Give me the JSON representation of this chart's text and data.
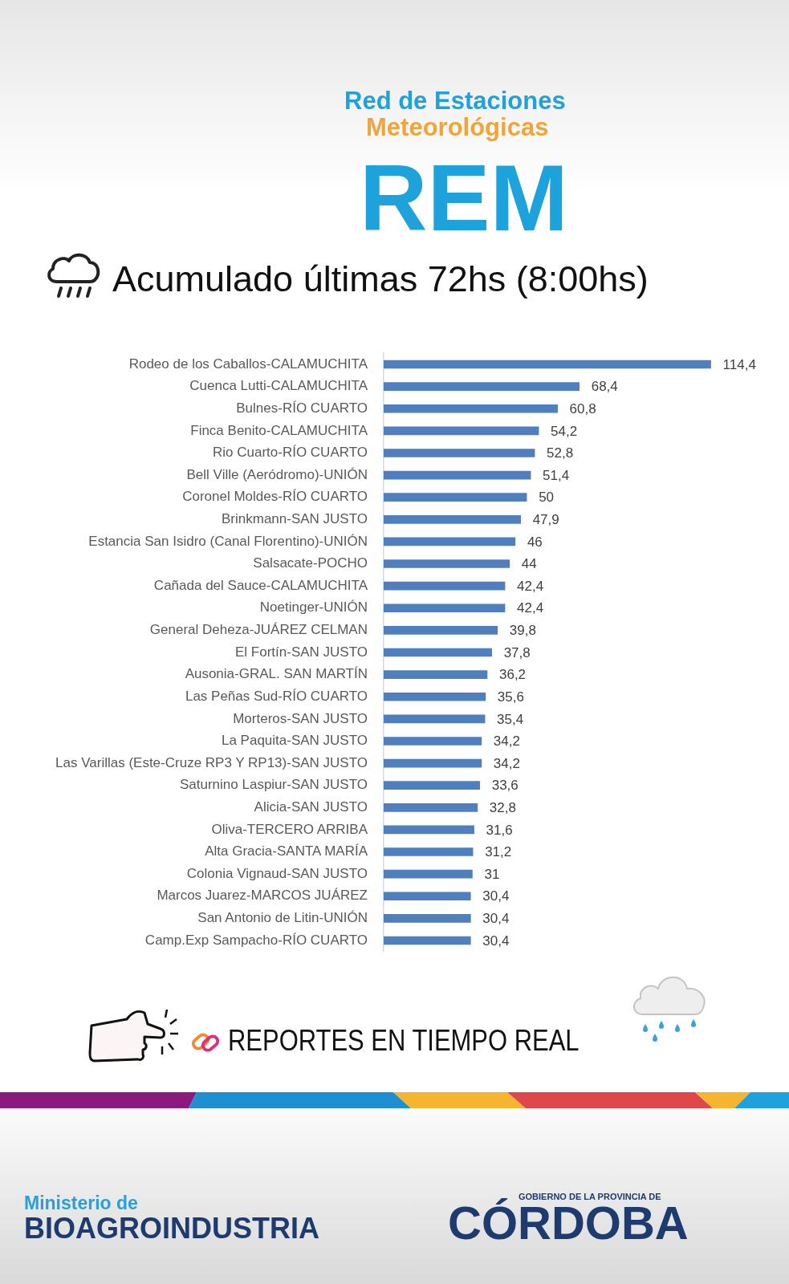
{
  "chart_data": {
    "type": "bar",
    "orientation": "horizontal",
    "title": "Acumulado últimas 72hs (8:00hs)",
    "categories": [
      "Rodeo de los Caballos-CALAMUCHITA",
      "Cuenca Lutti-CALAMUCHITA",
      "Bulnes-RÍO CUARTO",
      "Finca Benito-CALAMUCHITA",
      "Rio Cuarto-RÍO CUARTO",
      "Bell Ville (Aeródromo)-UNIÓN",
      "Coronel Moldes-RÍO CUARTO",
      "Brinkmann-SAN JUSTO",
      "Estancia San Isidro (Canal Florentino)-UNIÓN",
      "Salsacate-POCHO",
      "Cañada del Sauce-CALAMUCHITA",
      "Noetinger-UNIÓN",
      "General Deheza-JUÁREZ CELMAN",
      "El Fortín-SAN JUSTO",
      "Ausonia-GRAL. SAN MARTÍN",
      "Las Peñas Sud-RÍO CUARTO",
      "Morteros-SAN JUSTO",
      "La Paquita-SAN JUSTO",
      "Las Varillas (Este-Cruze RP3 Y RP13)-SAN JUSTO",
      "Saturnino Laspiur-SAN JUSTO",
      "Alicia-SAN JUSTO",
      "Oliva-TERCERO ARRIBA",
      "Alta Gracia-SANTA MARÍA",
      "Colonia Vignaud-SAN JUSTO",
      "Marcos Juarez-MARCOS JUÁREZ",
      "San Antonio de Litin-UNIÓN",
      "Camp.Exp Sampacho-RÍO CUARTO"
    ],
    "values": [
      114.4,
      68.4,
      60.8,
      54.2,
      52.8,
      51.4,
      50,
      47.9,
      46,
      44,
      42.4,
      42.4,
      39.8,
      37.8,
      36.2,
      35.6,
      35.4,
      34.2,
      34.2,
      33.6,
      32.8,
      31.6,
      31.2,
      31,
      30.4,
      30.4,
      30.4
    ],
    "value_labels": [
      "114,4",
      "68,4",
      "60,8",
      "54,2",
      "52,8",
      "51,4",
      "50",
      "47,9",
      "46",
      "44",
      "42,4",
      "42,4",
      "39,8",
      "37,8",
      "36,2",
      "35,6",
      "35,4",
      "34,2",
      "34,2",
      "33,6",
      "32,8",
      "31,6",
      "31,2",
      "31",
      "30,4",
      "30,4",
      "30,4"
    ],
    "color": "#4f7fbc",
    "tick_labels": "y",
    "annotations": [
      "Red de Estaciones",
      "Meteorológicas",
      "REM",
      "REPORTES EN TIEMPO REAL",
      "Ministerio de",
      "BIOAGROINDUSTRIA",
      "GOBIERNO DE LA PROVINCIA DE",
      "CÓRDOBA"
    ]
  }
}
